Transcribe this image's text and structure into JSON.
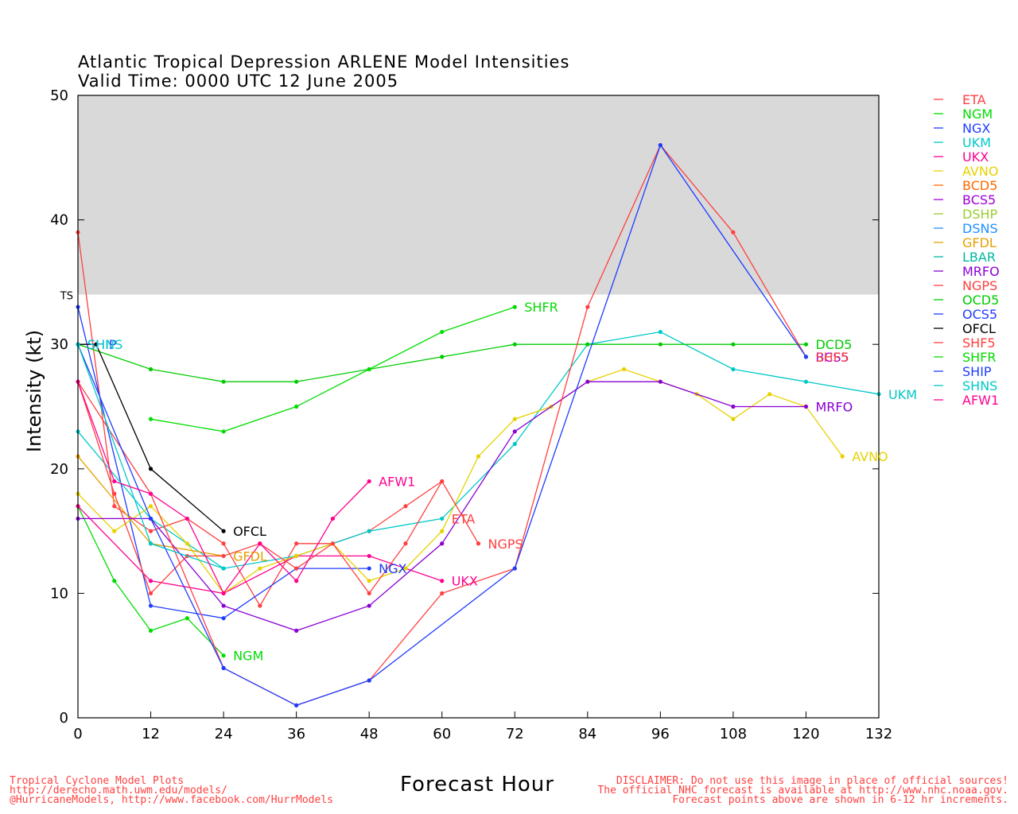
{
  "title_line1": "Atlantic Tropical Depression ARLENE Model Intensities",
  "title_line2": "Valid Time: 0000 UTC 12 June 2005",
  "footer_left": [
    "Tropical Cyclone Model Plots",
    "http://derecho.math.uwm.edu/models/",
    "@HurricaneModels, http://www.facebook.com/HurrModels"
  ],
  "footer_right": [
    "DISCLAIMER: Do not use this image in place of official sources!",
    "The official NHC forecast is available at http://www.nhc.noaa.gov.",
    "Forecast points above are shown in 6-12 hr increments."
  ],
  "chart_data": {
    "type": "line",
    "xlabel": "Forecast Hour",
    "ylabel": "Intensity (kt)",
    "xlim": [
      0,
      132
    ],
    "ylim": [
      0,
      50
    ],
    "x_ticks": [
      0,
      12,
      24,
      36,
      48,
      60,
      72,
      84,
      96,
      108,
      120,
      132
    ],
    "y_ticks": [
      0,
      10,
      20,
      30,
      40,
      50
    ],
    "shaded_band": {
      "from": 34,
      "to": 50,
      "color": "#d9d9d9",
      "label": "TS"
    },
    "legend_position": "right",
    "grid": false,
    "series": [
      {
        "name": "ETA",
        "color": "#ff4040",
        "label": "ETA",
        "x": [
          0,
          6,
          12,
          18,
          24,
          30,
          36,
          42,
          48,
          54,
          60
        ],
        "y": [
          39,
          17,
          15,
          16,
          14,
          9,
          14,
          14,
          15,
          17,
          19
        ]
      },
      {
        "name": "NGM",
        "color": "#00dd00",
        "label": "NGM",
        "x": [
          0,
          6,
          12,
          18,
          24
        ],
        "y": [
          17,
          11,
          7,
          8,
          5
        ]
      },
      {
        "name": "NGX",
        "color": "#1e3cff",
        "label": "NGX",
        "x": [
          0,
          12,
          24,
          36,
          48
        ],
        "y": [
          33,
          9,
          8,
          12,
          12
        ]
      },
      {
        "name": "UKM",
        "color": "#00c8c8",
        "label": "UKM",
        "x": [
          0,
          12,
          24,
          36,
          48,
          60,
          72,
          84,
          96,
          108,
          120,
          132
        ],
        "y": [
          23,
          16,
          12,
          13,
          15,
          16,
          22,
          30,
          31,
          28,
          27,
          26
        ]
      },
      {
        "name": "UKX",
        "color": "#ff0090",
        "label": "UKX",
        "x": [
          0,
          12,
          24,
          36,
          48,
          60
        ],
        "y": [
          17,
          11,
          10,
          13,
          13,
          11
        ]
      },
      {
        "name": "AVNO",
        "color": "#e6d200",
        "label": "AVNO",
        "x": [
          0,
          6,
          12,
          18,
          24,
          30,
          36,
          42,
          48,
          54,
          60,
          66,
          72,
          78,
          84,
          90,
          96,
          102,
          108,
          114,
          120,
          126
        ],
        "y": [
          18,
          15,
          17,
          14,
          10,
          12,
          13,
          14,
          11,
          12,
          15,
          21,
          24,
          25,
          27,
          28,
          27,
          26,
          24,
          26,
          25,
          21
        ]
      },
      {
        "name": "BCD5",
        "color": "#ff6a00",
        "label": "",
        "x": [],
        "y": []
      },
      {
        "name": "BCS5",
        "color": "#a000d8",
        "label": "",
        "x": [],
        "y": []
      },
      {
        "name": "DSHP",
        "color": "#9acd32",
        "label": "",
        "x": [],
        "y": []
      },
      {
        "name": "DSNS",
        "color": "#1e90ff",
        "label": "",
        "x": [],
        "y": []
      },
      {
        "name": "GFDL",
        "color": "#e6a000",
        "label": "GFDL",
        "x": [
          0,
          12,
          24
        ],
        "y": [
          21,
          14,
          13
        ]
      },
      {
        "name": "LBAR",
        "color": "#00b8a0",
        "label": "",
        "x": [],
        "y": []
      },
      {
        "name": "MRFO",
        "color": "#8a00d4",
        "label": "MRFO",
        "x": [
          0,
          12,
          24,
          36,
          48,
          60,
          72,
          84,
          96,
          108,
          120
        ],
        "y": [
          16,
          16,
          9,
          7,
          9,
          14,
          23,
          27,
          27,
          25,
          25
        ]
      },
      {
        "name": "NGPS",
        "color": "#ff4040",
        "label": "NGPS",
        "x": [
          0,
          6,
          12,
          18,
          24,
          30,
          36,
          42,
          48,
          54,
          60,
          66
        ],
        "y": [
          27,
          18,
          10,
          13,
          13,
          14,
          12,
          14,
          10,
          14,
          19,
          14
        ]
      },
      {
        "name": "OCD5",
        "color": "#00cc00",
        "label": "OCD5",
        "x": [
          0,
          12,
          24,
          36,
          48,
          60,
          72,
          84,
          96,
          108,
          120
        ],
        "y": [
          30,
          28,
          27,
          27,
          28,
          29,
          30,
          30,
          30,
          30,
          30
        ]
      },
      {
        "name": "OCS5",
        "color": "#1e3cff",
        "label": "",
        "x": [],
        "y": []
      },
      {
        "name": "OFCL",
        "color": "#000000",
        "label": "OFCL",
        "x": [
          0,
          3,
          12,
          24
        ],
        "y": [
          30,
          30,
          20,
          15
        ]
      },
      {
        "name": "SHF5",
        "color": "#ff4040",
        "label": "SHF5",
        "x": [
          0,
          12,
          24,
          36,
          48,
          60,
          72,
          84,
          96,
          108,
          120
        ],
        "y": [
          27,
          18,
          4,
          1,
          3,
          10,
          12,
          33,
          46,
          39,
          29
        ]
      },
      {
        "name": "SHFR",
        "color": "#00dd00",
        "label": "SHFR",
        "x": [
          12,
          24,
          36,
          48,
          60,
          72
        ],
        "y": [
          24,
          23,
          25,
          28,
          31,
          33
        ]
      },
      {
        "name": "SHIP",
        "color": "#1e3cff",
        "label": "SHIP",
        "x": [
          0,
          12,
          24,
          36,
          48,
          72,
          96,
          120
        ],
        "y": [
          30,
          16,
          4,
          1,
          3,
          12,
          46,
          29
        ]
      },
      {
        "name": "SHNS",
        "color": "#00c8c8",
        "label": "SHNS",
        "x": [
          0,
          12,
          24
        ],
        "y": [
          30,
          14,
          12
        ]
      },
      {
        "name": "AFW1",
        "color": "#ff0090",
        "label": "AFW1",
        "x": [
          0,
          6,
          12,
          18,
          24,
          30,
          36,
          42,
          48
        ],
        "y": [
          27,
          19,
          18,
          16,
          10,
          14,
          11,
          16,
          19
        ]
      }
    ],
    "tail_labels": [
      {
        "text": "ETA",
        "color": "#ff4040",
        "x": 60,
        "y": 16
      },
      {
        "text": "NGM",
        "color": "#00dd00",
        "x": 24,
        "y": 5
      },
      {
        "text": "NGX",
        "color": "#1e3cff",
        "x": 48,
        "y": 12
      },
      {
        "text": "UKM",
        "color": "#00c8c8",
        "x": 132,
        "y": 26
      },
      {
        "text": "UKX",
        "color": "#ff0090",
        "x": 60,
        "y": 11
      },
      {
        "text": "AVNO",
        "color": "#e6d200",
        "x": 126,
        "y": 21
      },
      {
        "text": "GFDL",
        "color": "#e6a000",
        "x": 24,
        "y": 13
      },
      {
        "text": "MRFO",
        "color": "#8a00d4",
        "x": 120,
        "y": 25
      },
      {
        "text": "NGPS",
        "color": "#ff4040",
        "x": 66,
        "y": 14
      },
      {
        "text": "OFCL",
        "color": "#000000",
        "x": 24,
        "y": 15
      },
      {
        "text": "SHFR",
        "color": "#00dd00",
        "x": 72,
        "y": 33
      },
      {
        "text": "AFW1",
        "color": "#ff0090",
        "x": 48,
        "y": 19
      },
      {
        "text": "BCS5",
        "color": "#a000d8",
        "x": 120,
        "y": 29
      },
      {
        "text": "DCD5",
        "color": "#00cc00",
        "x": 120,
        "y": 30
      },
      {
        "text": "SHF5",
        "color": "#ff4040",
        "x": 120,
        "y": 29
      },
      {
        "text": "SHIP",
        "color": "#1e3cff",
        "x": 0,
        "y": 30
      },
      {
        "text": "SHNS",
        "color": "#00c8c8",
        "x": 0,
        "y": 30
      }
    ]
  }
}
